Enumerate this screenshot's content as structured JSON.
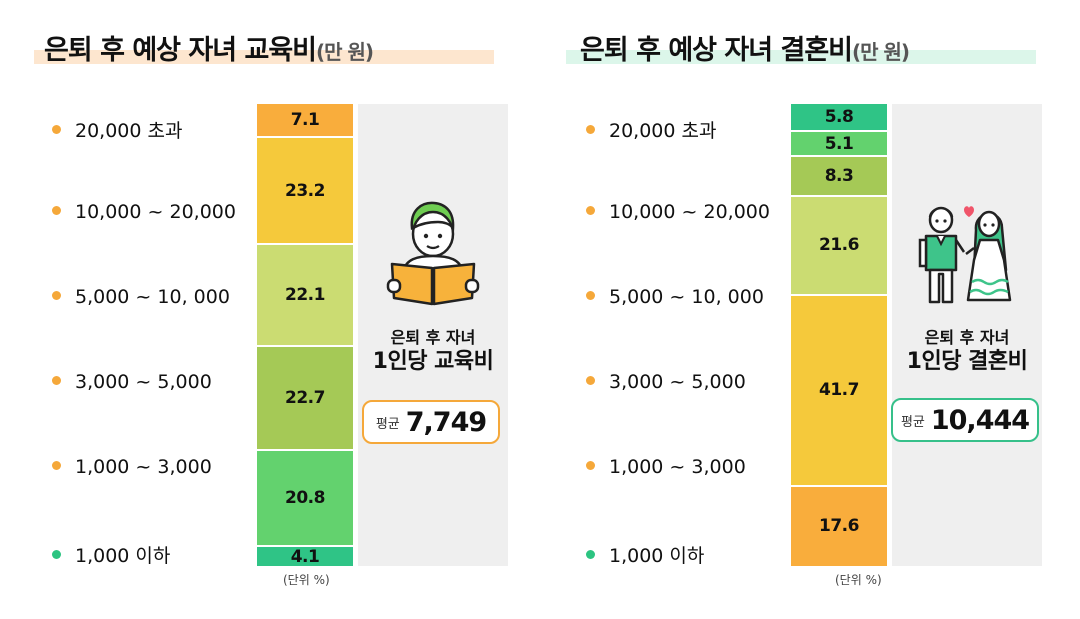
{
  "colors": {
    "orange_dot": "#f5a83a",
    "green_dot": "#2cc481",
    "bg_panel": "#efefef",
    "edu_box_border": "#f5a83a",
    "wed_box_border": "#36c08a"
  },
  "chart_data": [
    {
      "type": "bar",
      "stacked": true,
      "title": "은퇴 후 예상 자녀 교육비",
      "title_unit": "(만 원)",
      "categories": [
        "20,000 초과",
        "10,000 ~ 20,000",
        "5,000 ~ 10, 000",
        "3,000 ~ 5,000",
        "1,000 ~ 3,000",
        "1,000 이하"
      ],
      "values": [
        7.1,
        23.2,
        22.1,
        22.7,
        20.8,
        4.1
      ],
      "value_labels": [
        "7.1",
        "23.2",
        "22.1",
        "22.7",
        "20.8",
        "4.1"
      ],
      "segment_colors": [
        "#f9ad3c",
        "#f5c93b",
        "#cbdc72",
        "#a5c956",
        "#63d26e",
        "#2fc486"
      ],
      "category_dot_colors": [
        "#f5a83a",
        "#f5a83a",
        "#f5a83a",
        "#f5a83a",
        "#f5a83a",
        "#2cc481"
      ],
      "unit_note": "(단위 %)",
      "summary_line1": "은퇴 후 자녀",
      "summary_line2": "1인당 교육비",
      "avg_label": "평균",
      "avg_value": "7,749",
      "icon": "reading-person-icon"
    },
    {
      "type": "bar",
      "stacked": true,
      "title": "은퇴 후 예상 자녀 결혼비",
      "title_unit": "(만 원)",
      "categories": [
        "20,000 초과",
        "10,000 ~ 20,000",
        "5,000 ~ 10, 000",
        "3,000 ~ 5,000",
        "1,000 ~ 3,000",
        "1,000 이하"
      ],
      "values": [
        5.8,
        5.1,
        8.3,
        21.6,
        41.7,
        17.6
      ],
      "value_labels": [
        "5.8",
        "5.1",
        "8.3",
        "21.6",
        "41.7",
        "17.6"
      ],
      "segment_colors": [
        "#2fc486",
        "#63d26e",
        "#a5c956",
        "#cbdc72",
        "#f5c93b",
        "#f9ad3c"
      ],
      "category_dot_colors": [
        "#f5a83a",
        "#f5a83a",
        "#f5a83a",
        "#f5a83a",
        "#f5a83a",
        "#2cc481"
      ],
      "unit_note": "(단위 %)",
      "summary_line1": "은퇴 후 자녀",
      "summary_line2": "1인당 결혼비",
      "avg_label": "평균",
      "avg_value": "10,444",
      "icon": "wedding-couple-icon"
    }
  ]
}
